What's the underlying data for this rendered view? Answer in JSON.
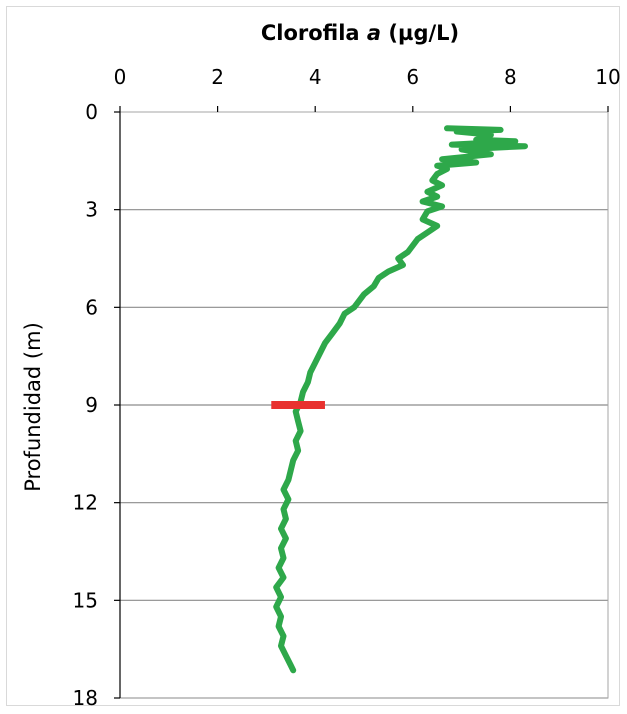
{
  "chart_data": {
    "type": "line",
    "title": "Clorofila a (µg/L)",
    "title_parts": {
      "before": "Clorofila ",
      "italic": "a",
      "after": " (µg/L)"
    },
    "xlabel": "Clorofila a (µg/L)",
    "ylabel": "Profundidad (m)",
    "x_axis_position": "top",
    "y_axis_inverted": true,
    "xlim": [
      0,
      10
    ],
    "ylim": [
      0,
      18
    ],
    "x_ticks": [
      "0",
      "2",
      "4",
      "6",
      "8",
      "10"
    ],
    "y_ticks": [
      "0",
      "3",
      "6",
      "9",
      "12",
      "15",
      "18"
    ],
    "grid": {
      "horizontal": true,
      "vertical": false
    },
    "series": [
      {
        "color": "#2ea84a",
        "points": [
          [
            6.7,
            0.5
          ],
          [
            7.8,
            0.55
          ],
          [
            6.9,
            0.6
          ],
          [
            7.6,
            0.7
          ],
          [
            7.3,
            0.85
          ],
          [
            8.1,
            0.9
          ],
          [
            6.8,
            1.0
          ],
          [
            8.3,
            1.05
          ],
          [
            7.0,
            1.15
          ],
          [
            7.6,
            1.3
          ],
          [
            6.6,
            1.45
          ],
          [
            7.3,
            1.55
          ],
          [
            6.5,
            1.65
          ],
          [
            6.7,
            1.75
          ],
          [
            6.5,
            1.9
          ],
          [
            6.4,
            2.1
          ],
          [
            6.6,
            2.25
          ],
          [
            6.3,
            2.45
          ],
          [
            6.5,
            2.6
          ],
          [
            6.2,
            2.75
          ],
          [
            6.6,
            2.9
          ],
          [
            6.3,
            3.05
          ],
          [
            6.2,
            3.3
          ],
          [
            6.5,
            3.5
          ],
          [
            6.3,
            3.7
          ],
          [
            6.1,
            3.9
          ],
          [
            6.0,
            4.1
          ],
          [
            5.9,
            4.3
          ],
          [
            5.7,
            4.5
          ],
          [
            5.8,
            4.7
          ],
          [
            5.5,
            4.9
          ],
          [
            5.3,
            5.1
          ],
          [
            5.2,
            5.35
          ],
          [
            5.0,
            5.6
          ],
          [
            4.9,
            5.8
          ],
          [
            4.8,
            6.0
          ],
          [
            4.6,
            6.2
          ],
          [
            4.5,
            6.5
          ],
          [
            4.35,
            6.8
          ],
          [
            4.2,
            7.1
          ],
          [
            4.1,
            7.4
          ],
          [
            4.0,
            7.7
          ],
          [
            3.9,
            8.0
          ],
          [
            3.85,
            8.3
          ],
          [
            3.75,
            8.6
          ],
          [
            3.7,
            8.9
          ],
          [
            3.6,
            9.2
          ],
          [
            3.65,
            9.5
          ],
          [
            3.7,
            9.8
          ],
          [
            3.6,
            10.1
          ],
          [
            3.65,
            10.4
          ],
          [
            3.55,
            10.7
          ],
          [
            3.5,
            11.0
          ],
          [
            3.45,
            11.3
          ],
          [
            3.35,
            11.6
          ],
          [
            3.45,
            11.9
          ],
          [
            3.35,
            12.2
          ],
          [
            3.4,
            12.5
          ],
          [
            3.3,
            12.8
          ],
          [
            3.4,
            13.1
          ],
          [
            3.3,
            13.4
          ],
          [
            3.35,
            13.7
          ],
          [
            3.25,
            14.0
          ],
          [
            3.35,
            14.3
          ],
          [
            3.2,
            14.6
          ],
          [
            3.3,
            14.9
          ],
          [
            3.2,
            15.2
          ],
          [
            3.3,
            15.5
          ],
          [
            3.25,
            15.8
          ],
          [
            3.35,
            16.1
          ],
          [
            3.3,
            16.4
          ],
          [
            3.4,
            16.7
          ],
          [
            3.5,
            17.0
          ],
          [
            3.55,
            17.15
          ]
        ]
      }
    ],
    "marker": {
      "color": "#e8312f",
      "y": 9,
      "x_start": 3.1,
      "x_end": 4.2
    }
  }
}
